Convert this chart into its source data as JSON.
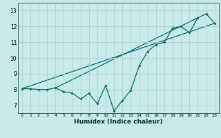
{
  "xlabel": "Humidex (Indice chaleur)",
  "bg_color": "#c8eaea",
  "grid_color": "#b0d0d0",
  "line_color": "#006666",
  "xlim": [
    -0.5,
    23.5
  ],
  "ylim": [
    6.5,
    13.5
  ],
  "xticks": [
    0,
    1,
    2,
    3,
    4,
    5,
    6,
    7,
    8,
    9,
    10,
    11,
    12,
    13,
    14,
    15,
    16,
    17,
    18,
    19,
    20,
    21,
    22,
    23
  ],
  "yticks": [
    7,
    8,
    9,
    10,
    11,
    12,
    13
  ],
  "zigzag_x": [
    0,
    1,
    2,
    3,
    4,
    5,
    6,
    7,
    8,
    9,
    10,
    11,
    12,
    13,
    14,
    15,
    16,
    17,
    18,
    19,
    20,
    21,
    22,
    23
  ],
  "zigzag_y": [
    8.05,
    8.05,
    8.0,
    8.0,
    8.1,
    7.85,
    7.78,
    7.4,
    7.75,
    7.1,
    8.25,
    6.65,
    7.3,
    7.95,
    9.5,
    10.4,
    10.85,
    11.0,
    11.9,
    12.0,
    11.6,
    12.55,
    12.8,
    12.2
  ],
  "env_line1_x": [
    0,
    23
  ],
  "env_line1_y": [
    8.05,
    12.2
  ],
  "env_line2_x": [
    4,
    21
  ],
  "env_line2_y": [
    8.1,
    12.55
  ]
}
